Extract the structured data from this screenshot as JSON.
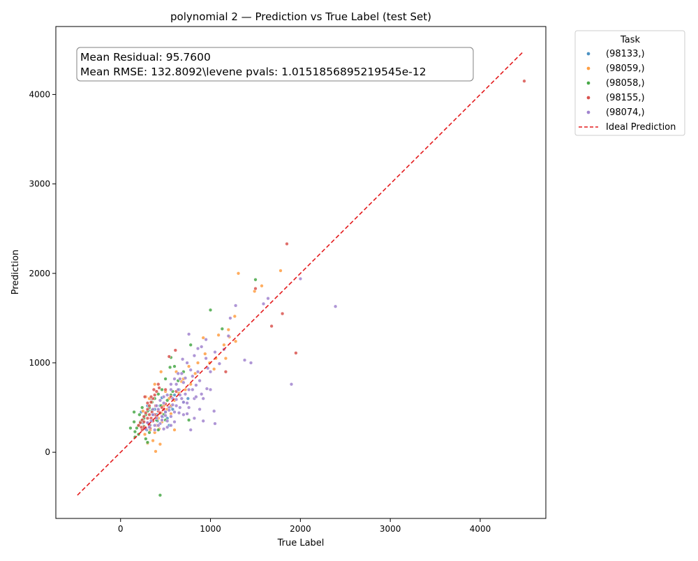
{
  "chart_data": {
    "type": "scatter",
    "title": "polynomial 2 — Prediction vs True Label (test Set)",
    "xlabel": "True Label",
    "ylabel": "Prediction",
    "xlim": [
      -720,
      4730
    ],
    "ylim": [
      -740,
      4760
    ],
    "xticks": [
      0,
      1000,
      2000,
      3000,
      4000
    ],
    "yticks": [
      0,
      1000,
      2000,
      3000,
      4000
    ],
    "grid": false,
    "annotation": {
      "line1": "Mean Residual: 95.7600",
      "line2": "Mean RMSE: 132.8092\\levene pvals: 1.0151856895219545e-12"
    },
    "legend": {
      "title": "Task",
      "placement": "outside-top-right",
      "ideal_label": "Ideal Prediction",
      "ideal_color": "#e31a1c"
    },
    "ideal_line": {
      "x": [
        -480,
        4480
      ],
      "y": [
        -480,
        4480
      ]
    },
    "series": [
      {
        "name": "(98133,)",
        "color": "#4c92c3",
        "points": [
          [
            230,
            450
          ],
          [
            260,
            390
          ],
          [
            300,
            520
          ],
          [
            330,
            300
          ],
          [
            360,
            420
          ],
          [
            380,
            480
          ],
          [
            410,
            350
          ],
          [
            440,
            520
          ],
          [
            470,
            400
          ],
          [
            500,
            450
          ],
          [
            520,
            380
          ],
          [
            540,
            300
          ],
          [
            560,
            510
          ],
          [
            600,
            640
          ],
          [
            650,
            700
          ],
          [
            700,
            560
          ],
          [
            750,
            600
          ],
          [
            290,
            250
          ],
          [
            340,
            600
          ],
          [
            400,
            420
          ],
          [
            250,
            330
          ],
          [
            310,
            470
          ],
          [
            580,
            480
          ],
          [
            460,
            610
          ]
        ]
      },
      {
        "name": "(98059,)",
        "color": "#ff9f43",
        "points": [
          [
            1310,
            2000
          ],
          [
            1780,
            2030
          ],
          [
            1490,
            1800
          ],
          [
            1570,
            1860
          ],
          [
            1270,
            1520
          ],
          [
            1200,
            1370
          ],
          [
            1280,
            1240
          ],
          [
            1170,
            1050
          ],
          [
            1150,
            1200
          ],
          [
            1090,
            1310
          ],
          [
            1060,
            1050
          ],
          [
            990,
            1000
          ],
          [
            940,
            1100
          ],
          [
            920,
            1280
          ],
          [
            860,
            1000
          ],
          [
            830,
            880
          ],
          [
            780,
            760
          ],
          [
            720,
            700
          ],
          [
            680,
            790
          ],
          [
            650,
            660
          ],
          [
            600,
            580
          ],
          [
            560,
            520
          ],
          [
            520,
            480
          ],
          [
            480,
            520
          ],
          [
            450,
            440
          ],
          [
            420,
            380
          ],
          [
            400,
            300
          ],
          [
            380,
            220
          ],
          [
            360,
            130
          ],
          [
            390,
            10
          ],
          [
            440,
            90
          ],
          [
            300,
            100
          ],
          [
            320,
            600
          ],
          [
            280,
            620
          ],
          [
            250,
            460
          ],
          [
            340,
            560
          ],
          [
            380,
            760
          ],
          [
            450,
            900
          ],
          [
            620,
            900
          ],
          [
            700,
            820
          ],
          [
            760,
            960
          ],
          [
            540,
            600
          ],
          [
            500,
            680
          ],
          [
            460,
            340
          ],
          [
            430,
            260
          ],
          [
            330,
            250
          ],
          [
            270,
            200
          ],
          [
            560,
            430
          ],
          [
            600,
            250
          ],
          [
            1040,
            930
          ],
          [
            1210,
            1290
          ]
        ]
      },
      {
        "name": "(98058,)",
        "color": "#48a848",
        "points": [
          [
            440,
            -480
          ],
          [
            1500,
            1930
          ],
          [
            1000,
            1590
          ],
          [
            1130,
            1380
          ],
          [
            780,
            1200
          ],
          [
            560,
            1060
          ],
          [
            600,
            960
          ],
          [
            550,
            950
          ],
          [
            500,
            820
          ],
          [
            460,
            700
          ],
          [
            420,
            650
          ],
          [
            380,
            600
          ],
          [
            350,
            560
          ],
          [
            320,
            500
          ],
          [
            300,
            460
          ],
          [
            280,
            420
          ],
          [
            260,
            380
          ],
          [
            240,
            360
          ],
          [
            220,
            340
          ],
          [
            200,
            300
          ],
          [
            180,
            270
          ],
          [
            160,
            230
          ],
          [
            150,
            450
          ],
          [
            150,
            340
          ],
          [
            110,
            270
          ],
          [
            160,
            170
          ],
          [
            200,
            200
          ],
          [
            240,
            500
          ],
          [
            280,
            150
          ],
          [
            300,
            110
          ],
          [
            420,
            250
          ],
          [
            480,
            420
          ],
          [
            520,
            580
          ],
          [
            580,
            680
          ],
          [
            640,
            800
          ],
          [
            700,
            900
          ],
          [
            760,
            360
          ],
          [
            500,
            360
          ],
          [
            400,
            360
          ],
          [
            320,
            220
          ],
          [
            260,
            290
          ],
          [
            210,
            420
          ],
          [
            350,
            470
          ],
          [
            450,
            520
          ],
          [
            560,
            640
          ]
        ]
      },
      {
        "name": "(98155,)",
        "color": "#d9534f",
        "points": [
          [
            4490,
            4150
          ],
          [
            1850,
            2330
          ],
          [
            1800,
            1550
          ],
          [
            1680,
            1410
          ],
          [
            1950,
            1110
          ],
          [
            1500,
            1830
          ],
          [
            1170,
            900
          ],
          [
            610,
            1140
          ],
          [
            540,
            1070
          ],
          [
            430,
            720
          ],
          [
            400,
            680
          ],
          [
            380,
            640
          ],
          [
            360,
            600
          ],
          [
            340,
            560
          ],
          [
            320,
            520
          ],
          [
            300,
            480
          ],
          [
            280,
            440
          ],
          [
            260,
            400
          ],
          [
            240,
            360
          ],
          [
            220,
            330
          ],
          [
            200,
            300
          ],
          [
            260,
            280
          ],
          [
            300,
            330
          ],
          [
            340,
            380
          ],
          [
            380,
            420
          ],
          [
            420,
            460
          ],
          [
            460,
            500
          ],
          [
            500,
            540
          ],
          [
            240,
            250
          ],
          [
            280,
            270
          ],
          [
            320,
            300
          ],
          [
            360,
            350
          ],
          [
            400,
            400
          ],
          [
            440,
            440
          ],
          [
            480,
            480
          ],
          [
            300,
            380
          ],
          [
            320,
            420
          ],
          [
            350,
            450
          ],
          [
            260,
            340
          ],
          [
            230,
            280
          ],
          [
            420,
            760
          ],
          [
            500,
            700
          ],
          [
            560,
            620
          ],
          [
            620,
            680
          ],
          [
            300,
            550
          ],
          [
            340,
            620
          ],
          [
            370,
            700
          ],
          [
            270,
            620
          ],
          [
            330,
            270
          ],
          [
            390,
            520
          ]
        ]
      },
      {
        "name": "(98074,)",
        "color": "#a184cf",
        "points": [
          [
            2390,
            1630
          ],
          [
            2000,
            1940
          ],
          [
            1900,
            760
          ],
          [
            1640,
            1720
          ],
          [
            1590,
            1660
          ],
          [
            1450,
            1000
          ],
          [
            1380,
            1030
          ],
          [
            1280,
            1640
          ],
          [
            1220,
            1500
          ],
          [
            1200,
            1300
          ],
          [
            1150,
            1150
          ],
          [
            1100,
            990
          ],
          [
            1050,
            1120
          ],
          [
            1040,
            460
          ],
          [
            1050,
            320
          ],
          [
            1000,
            700
          ],
          [
            970,
            940
          ],
          [
            950,
            1050
          ],
          [
            920,
            350
          ],
          [
            900,
            650
          ],
          [
            880,
            800
          ],
          [
            860,
            900
          ],
          [
            840,
            750
          ],
          [
            820,
            600
          ],
          [
            800,
            850
          ],
          [
            780,
            920
          ],
          [
            760,
            700
          ],
          [
            740,
            550
          ],
          [
            720,
            650
          ],
          [
            700,
            780
          ],
          [
            680,
            600
          ],
          [
            660,
            500
          ],
          [
            640,
            700
          ],
          [
            620,
            520
          ],
          [
            600,
            450
          ],
          [
            580,
            600
          ],
          [
            560,
            400
          ],
          [
            540,
            500
          ],
          [
            520,
            350
          ],
          [
            500,
            450
          ],
          [
            480,
            550
          ],
          [
            460,
            400
          ],
          [
            440,
            320
          ],
          [
            420,
            480
          ],
          [
            400,
            380
          ],
          [
            380,
            300
          ],
          [
            360,
            420
          ],
          [
            340,
            350
          ],
          [
            320,
            280
          ],
          [
            300,
            330
          ],
          [
            280,
            260
          ],
          [
            760,
            1320
          ],
          [
            690,
            1040
          ],
          [
            740,
            1000
          ],
          [
            820,
            1080
          ],
          [
            860,
            1160
          ],
          [
            900,
            1180
          ],
          [
            950,
            1260
          ],
          [
            780,
            250
          ],
          [
            820,
            380
          ],
          [
            740,
            430
          ],
          [
            700,
            420
          ],
          [
            650,
            440
          ],
          [
            600,
            340
          ],
          [
            560,
            300
          ],
          [
            520,
            280
          ],
          [
            480,
            260
          ],
          [
            880,
            480
          ],
          [
            920,
            600
          ],
          [
            960,
            710
          ],
          [
            1000,
            900
          ],
          [
            640,
            880
          ],
          [
            600,
            820
          ],
          [
            560,
            760
          ],
          [
            680,
            880
          ],
          [
            720,
            830
          ],
          [
            800,
            700
          ],
          [
            840,
            620
          ],
          [
            760,
            500
          ],
          [
            700,
            560
          ],
          [
            660,
            640
          ],
          [
            620,
            590
          ],
          [
            580,
            530
          ],
          [
            540,
            470
          ],
          [
            500,
            410
          ],
          [
            460,
            360
          ],
          [
            420,
            300
          ],
          [
            380,
            250
          ],
          [
            620,
            760
          ],
          [
            660,
            820
          ],
          [
            520,
            640
          ],
          [
            560,
            700
          ],
          [
            440,
            580
          ],
          [
            480,
            620
          ],
          [
            400,
            520
          ],
          [
            360,
            480
          ]
        ]
      }
    ]
  }
}
